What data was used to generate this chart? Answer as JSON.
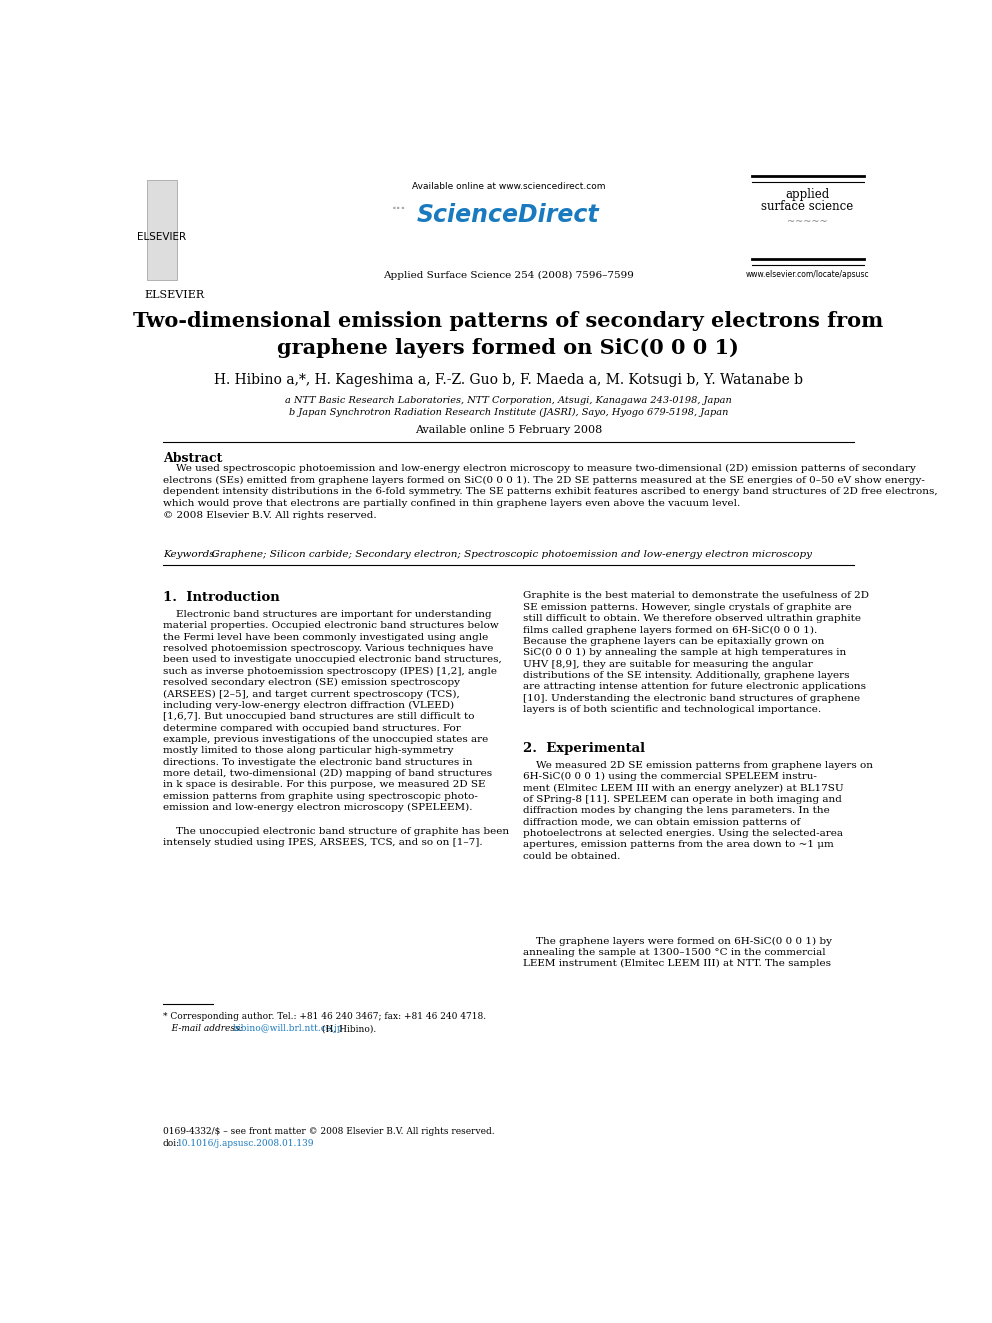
{
  "fig_width": 9.92,
  "fig_height": 13.23,
  "bg_color": "#ffffff",
  "header": {
    "available_online": "Available online at www.sciencedirect.com",
    "journal_info": "Applied Surface Science 254 (2008) 7596–7599",
    "journal_name_line1": "applied",
    "journal_name_line2": "surface science",
    "elsevier_text": "ELSEVIER",
    "website": "www.elsevier.com/locate/apsusc"
  },
  "title": "Two-dimensional emission patterns of secondary electrons from\ngraphene layers formed on SiC(0 0 0 1)",
  "authors": "H. Hibino a,*, H. Kageshima a, F.-Z. Guo b, F. Maeda a, M. Kotsugi b, Y. Watanabe b",
  "affil_a": "a NTT Basic Research Laboratories, NTT Corporation, Atsugi, Kanagawa 243-0198, Japan",
  "affil_b": "b Japan Synchrotron Radiation Research Institute (JASRI), Sayo, Hyogo 679-5198, Japan",
  "available_online_date": "Available online 5 February 2008",
  "abstract_title": "Abstract",
  "abstract_text": "    We used spectroscopic photoemission and low-energy electron microscopy to measure two-dimensional (2D) emission patterns of secondary\nelectrons (SEs) emitted from graphene layers formed on SiC(0 0 0 1). The 2D SE patterns measured at the SE energies of 0–50 eV show energy-\ndependent intensity distributions in the 6-fold symmetry. The SE patterns exhibit features ascribed to energy band structures of 2D free electrons,\nwhich would prove that electrons are partially confined in thin graphene layers even above the vacuum level.\n© 2008 Elsevier B.V. All rights reserved.",
  "keywords_label": "Keywords:",
  "keywords_text": "  Graphene; Silicon carbide; Secondary electron; Spectroscopic photoemission and low-energy electron microscopy",
  "section1_title": "1.  Introduction",
  "section1_col1_para1": "    Electronic band structures are important for understanding\nmaterial properties. Occupied electronic band structures below\nthe Fermi level have been commonly investigated using angle\nresolved photoemission spectroscopy. Various techniques have\nbeen used to investigate unoccupied electronic band structures,\nsuch as inverse photoemission spectroscopy (IPES) [1,2], angle\nresolved secondary electron (SE) emission spectroscopy\n(ARSEES) [2–5], and target current spectroscopy (TCS),\nincluding very-low-energy electron diffraction (VLEED)\n[1,6,7]. But unoccupied band structures are still difficult to\ndetermine compared with occupied band structures. For\nexample, previous investigations of the unoccupied states are\nmostly limited to those along particular high-symmetry\ndirections. To investigate the electronic band structures in\nmore detail, two-dimensional (2D) mapping of band structures\nin k space is desirable. For this purpose, we measured 2D SE\nemission patterns from graphite using spectroscopic photo-\nemission and low-energy electron microscopy (SPELEEM).",
  "section1_col1_para2": "    The unoccupied electronic band structure of graphite has been\nintensely studied using IPES, ARSEES, TCS, and so on [1–7].",
  "section1_col2_para1": "Graphite is the best material to demonstrate the usefulness of 2D\nSE emission patterns. However, single crystals of graphite are\nstill difficult to obtain. We therefore observed ultrathin graphite\nfilms called graphene layers formed on 6H-SiC(0 0 0 1).\nBecause the graphene layers can be epitaxially grown on\nSiC(0 0 0 1) by annealing the sample at high temperatures in\nUHV [8,9], they are suitable for measuring the angular\ndistributions of the SE intensity. Additionally, graphene layers\nare attracting intense attention for future electronic applications\n[10]. Understanding the electronic band structures of graphene\nlayers is of both scientific and technological importance.",
  "section2_title": "2.  Experimental",
  "section2_col2_para1": "    We measured 2D SE emission patterns from graphene layers on\n6H-SiC(0 0 0 1) using the commercial SPELEEM instru-\nment (Elmitec LEEM III with an energy anelyzer) at BL17SU\nof SPring-8 [11]. SPELEEM can operate in both imaging and\ndiffraction modes by changing the lens parameters. In the\ndiffraction mode, we can obtain emission patterns of\nphotoelectrons at selected energies. Using the selected-area\napertures, emission patterns from the area down to ~1 μm\ncould be obtained.",
  "section2_col2_para2": "    The graphene layers were formed on 6H-SiC(0 0 0 1) by\nannealing the sample at 1300–1500 °C in the commercial\nLEEM instrument (Elmitec LEEM III) at NTT. The samples",
  "footnote_star": "* Corresponding author. Tel.: +81 46 240 3467; fax: +81 46 240 4718.",
  "footnote_email_label": "E-mail address:",
  "footnote_email": "hibino@will.brl.ntt.co.jp",
  "footnote_email_suffix": " (H. Hibino).",
  "footer_issn": "0169-4332/$ – see front matter © 2008 Elsevier B.V. All rights reserved.",
  "footer_doi_prefix": "doi:",
  "footer_doi_link": "10.1016/j.apsusc.2008.01.139"
}
